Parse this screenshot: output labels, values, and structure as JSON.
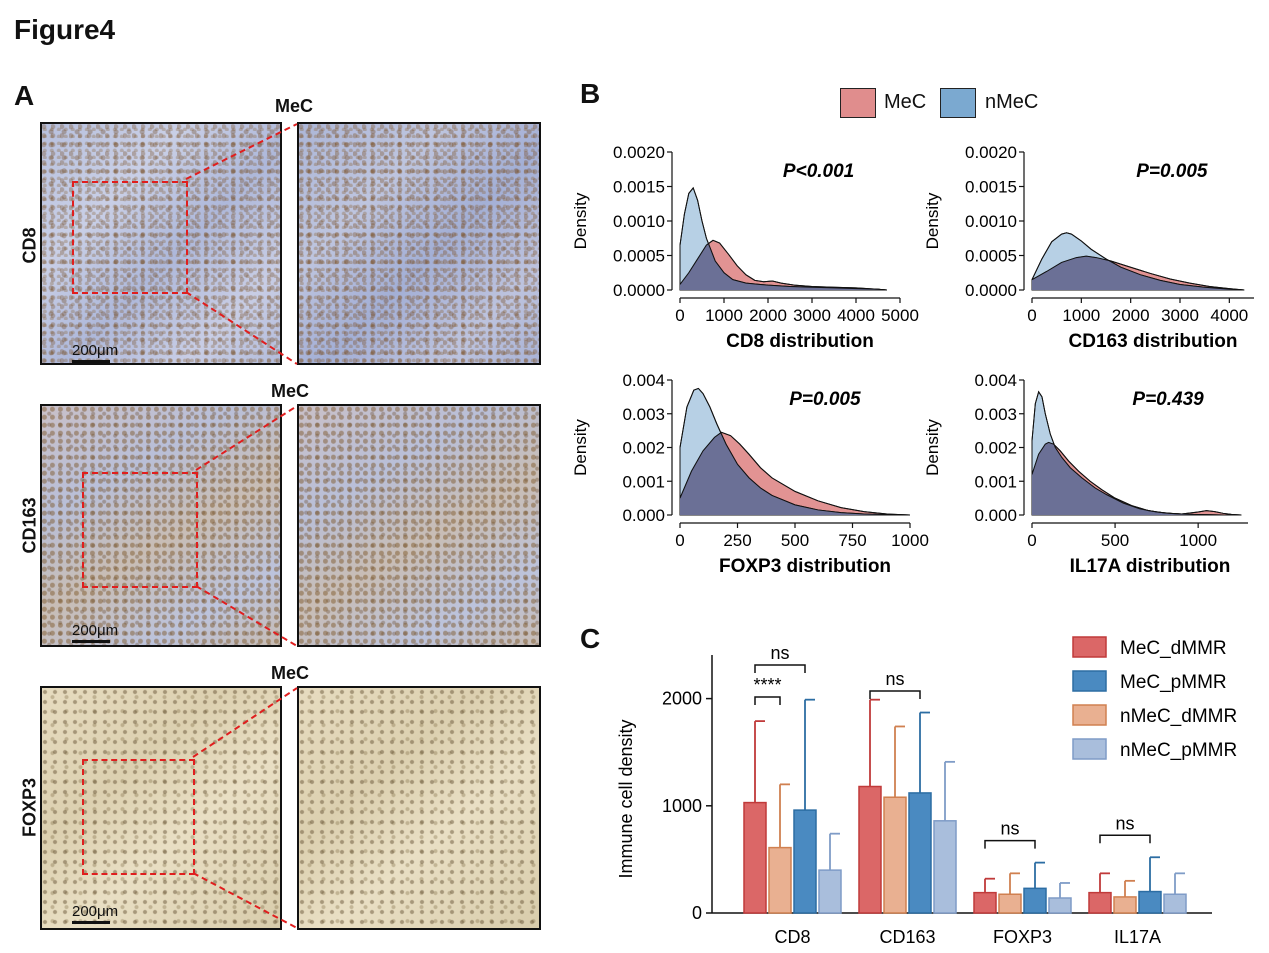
{
  "figure_title": "Figure4",
  "panels": {
    "A": {
      "letter": "A",
      "rows": [
        {
          "marker": "CD8",
          "title": "MeC",
          "scalebar": "200μm"
        },
        {
          "marker": "CD163",
          "title": "MeC",
          "scalebar": "200μm"
        },
        {
          "marker": "FOXP3",
          "title": "MeC",
          "scalebar": "200μm"
        }
      ]
    },
    "B": {
      "letter": "B"
    },
    "C": {
      "letter": "C"
    }
  },
  "legend_B": {
    "items": [
      {
        "label": "MeC",
        "color": "#e08d8d"
      },
      {
        "label": "nMeC",
        "color": "#7ba9d0"
      }
    ]
  },
  "colors": {
    "mec": "#e08d8d",
    "nmec": "#7ba9d0",
    "overlap": "#6b7096",
    "dash": "#e01e1e",
    "mec_dmmr": "#db6767",
    "mec_pmmr": "#4a8ac1",
    "nmec_dmmr": "#e9b091",
    "nmec_pmmr": "#a9bedc"
  },
  "chart_data": [
    {
      "type": "area",
      "id": "cd8",
      "xlabel": "CD8 distribution",
      "ylabel": "Density",
      "pvalue": "P<0.001",
      "xlim": [
        0,
        5000
      ],
      "ylim": [
        0,
        0.002
      ],
      "xticks": [
        "0",
        "1000",
        "2000",
        "3000",
        "4000",
        "5000"
      ],
      "yticks": [
        "0.0000",
        "0.0005",
        "0.0010",
        "0.0015",
        "0.0020"
      ],
      "series": [
        {
          "name": "MeC",
          "x": [
            0,
            200,
            400,
            600,
            750,
            900,
            1100,
            1300,
            1500,
            1700,
            1900,
            2100,
            2300,
            2600,
            3000,
            3500,
            4000,
            4500,
            4700
          ],
          "y": [
            8e-05,
            0.00025,
            0.00045,
            0.00065,
            0.00072,
            0.00068,
            0.00052,
            0.00035,
            0.00022,
            0.00014,
            0.00012,
            0.00013,
            0.0001,
            7e-05,
            5e-05,
            4e-05,
            3e-05,
            1e-05,
            0.0
          ]
        },
        {
          "name": "nMeC",
          "x": [
            0,
            100,
            200,
            300,
            400,
            500,
            600,
            800,
            1000,
            1200,
            1500,
            2000,
            2500,
            3000,
            3500,
            4000,
            4500,
            4700
          ],
          "y": [
            0.00065,
            0.0011,
            0.0014,
            0.00148,
            0.0013,
            0.001,
            0.00075,
            0.00042,
            0.00025,
            0.00015,
            0.0001,
            7e-05,
            5e-05,
            4e-05,
            3e-05,
            2e-05,
            1e-05,
            0.0
          ]
        }
      ]
    },
    {
      "type": "area",
      "id": "cd163",
      "xlabel": "CD163 distribution",
      "ylabel": "Density",
      "pvalue": "P=0.005",
      "xlim": [
        0,
        4500
      ],
      "ylim": [
        0,
        0.002
      ],
      "xticks": [
        "0",
        "1000",
        "2000",
        "3000",
        "4000"
      ],
      "yticks": [
        "0.0000",
        "0.0005",
        "0.0010",
        "0.0015",
        "0.0020"
      ],
      "series": [
        {
          "name": "MeC",
          "x": [
            0,
            300,
            600,
            900,
            1100,
            1300,
            1600,
            2000,
            2400,
            2800,
            3200,
            3600,
            4000,
            4300
          ],
          "y": [
            0.00015,
            0.00027,
            0.0004,
            0.00047,
            0.00049,
            0.00047,
            0.00042,
            0.00033,
            0.00024,
            0.00016,
            0.0001,
            5e-05,
            2e-05,
            0.0
          ]
        },
        {
          "name": "nMeC",
          "x": [
            0,
            200,
            400,
            600,
            700,
            800,
            1000,
            1200,
            1500,
            1800,
            2200,
            2600,
            3000,
            3500,
            4000,
            4300
          ],
          "y": [
            0.00015,
            0.00045,
            0.0007,
            0.00081,
            0.00083,
            0.00081,
            0.00071,
            0.00059,
            0.00045,
            0.00033,
            0.00022,
            0.00014,
            8e-05,
            4e-05,
            1e-05,
            0.0
          ]
        }
      ]
    },
    {
      "type": "area",
      "id": "foxp3",
      "xlabel": "FOXP3 distribution",
      "ylabel": "Density",
      "pvalue": "P=0.005",
      "xlim": [
        0,
        1000
      ],
      "ylim": [
        0,
        0.004
      ],
      "xticks": [
        "0",
        "250",
        "500",
        "750",
        "1000"
      ],
      "yticks": [
        "0.000",
        "0.001",
        "0.002",
        "0.003",
        "0.004"
      ],
      "series": [
        {
          "name": "MeC",
          "x": [
            0,
            50,
            100,
            150,
            180,
            220,
            260,
            300,
            350,
            400,
            500,
            600,
            700,
            800,
            900,
            1000
          ],
          "y": [
            0.0005,
            0.0013,
            0.0019,
            0.0023,
            0.00245,
            0.00235,
            0.0021,
            0.0018,
            0.0014,
            0.0011,
            0.0007,
            0.00042,
            0.00022,
            0.0001,
            3e-05,
            0.0
          ]
        },
        {
          "name": "nMeC",
          "x": [
            0,
            30,
            60,
            80,
            100,
            130,
            160,
            200,
            250,
            300,
            350,
            400,
            500,
            600,
            700,
            800,
            900,
            1000
          ],
          "y": [
            0.002,
            0.0032,
            0.0037,
            0.00375,
            0.0036,
            0.0032,
            0.0027,
            0.0021,
            0.0015,
            0.0011,
            0.0008,
            0.00058,
            0.0003,
            0.00015,
            7e-05,
            3e-05,
            1e-05,
            0.0
          ]
        }
      ]
    },
    {
      "type": "area",
      "id": "il17a",
      "xlabel": "IL17A distribution",
      "ylabel": "Density",
      "pvalue": "P=0.439",
      "xlim": [
        0,
        1300
      ],
      "ylim": [
        0,
        0.004
      ],
      "xticks": [
        "0",
        "500",
        "1000"
      ],
      "yticks": [
        "0.000",
        "0.001",
        "0.002",
        "0.003",
        "0.004"
      ],
      "series": [
        {
          "name": "MeC",
          "x": [
            0,
            40,
            80,
            100,
            130,
            170,
            220,
            280,
            350,
            420,
            500,
            600,
            700,
            800,
            900,
            1000,
            1050,
            1100,
            1150,
            1200,
            1260
          ],
          "y": [
            0.0012,
            0.0018,
            0.0021,
            0.00215,
            0.0021,
            0.0019,
            0.0016,
            0.0013,
            0.001,
            0.00075,
            0.0005,
            0.00028,
            0.00013,
            6e-05,
            3e-05,
            9e-05,
            0.00013,
            0.0001,
            5e-05,
            2e-05,
            0.0
          ]
        },
        {
          "name": "nMeC",
          "x": [
            0,
            20,
            40,
            60,
            80,
            110,
            140,
            180,
            230,
            300,
            380,
            450,
            550,
            650,
            750,
            850,
            950,
            1050,
            1150,
            1260
          ],
          "y": [
            0.0022,
            0.0033,
            0.00365,
            0.0035,
            0.003,
            0.0024,
            0.002,
            0.0017,
            0.0014,
            0.0011,
            0.0008,
            0.0006,
            0.00035,
            0.00018,
            9e-05,
            4e-05,
            2e-05,
            1e-05,
            0.0,
            0.0
          ]
        }
      ]
    },
    {
      "type": "bar",
      "id": "immune",
      "ylabel": "Immune cell density",
      "ylim": [
        0,
        2500
      ],
      "yticks": [
        "0",
        "1000",
        "2000"
      ],
      "categories": [
        "CD8",
        "CD163",
        "FOXP3",
        "IL17A"
      ],
      "series": [
        {
          "name": "MeC_dMMR",
          "values": [
            1030,
            1180,
            190,
            190
          ],
          "errors": [
            1790,
            1990,
            320,
            370
          ]
        },
        {
          "name": "MeC_pMMR",
          "values": [
            610,
            1080,
            175,
            150
          ],
          "errors": [
            1200,
            1740,
            370,
            300
          ]
        },
        {
          "name": "nMeC_dMMR",
          "values": [
            960,
            1120,
            230,
            200
          ],
          "errors": [
            1990,
            1870,
            470,
            520
          ]
        },
        {
          "name": "nMeC_pMMR",
          "values": [
            400,
            860,
            140,
            175
          ],
          "errors": [
            740,
            1410,
            280,
            370
          ]
        }
      ],
      "annotations": [
        {
          "label": "ns",
          "category": 0,
          "span": "outer"
        },
        {
          "label": "****",
          "category": 0,
          "span": "inner"
        },
        {
          "label": "ns",
          "category": 1,
          "span": "outer"
        },
        {
          "label": "ns",
          "category": 2,
          "span": "outer"
        },
        {
          "label": "ns",
          "category": 3,
          "span": "outer"
        }
      ]
    }
  ]
}
